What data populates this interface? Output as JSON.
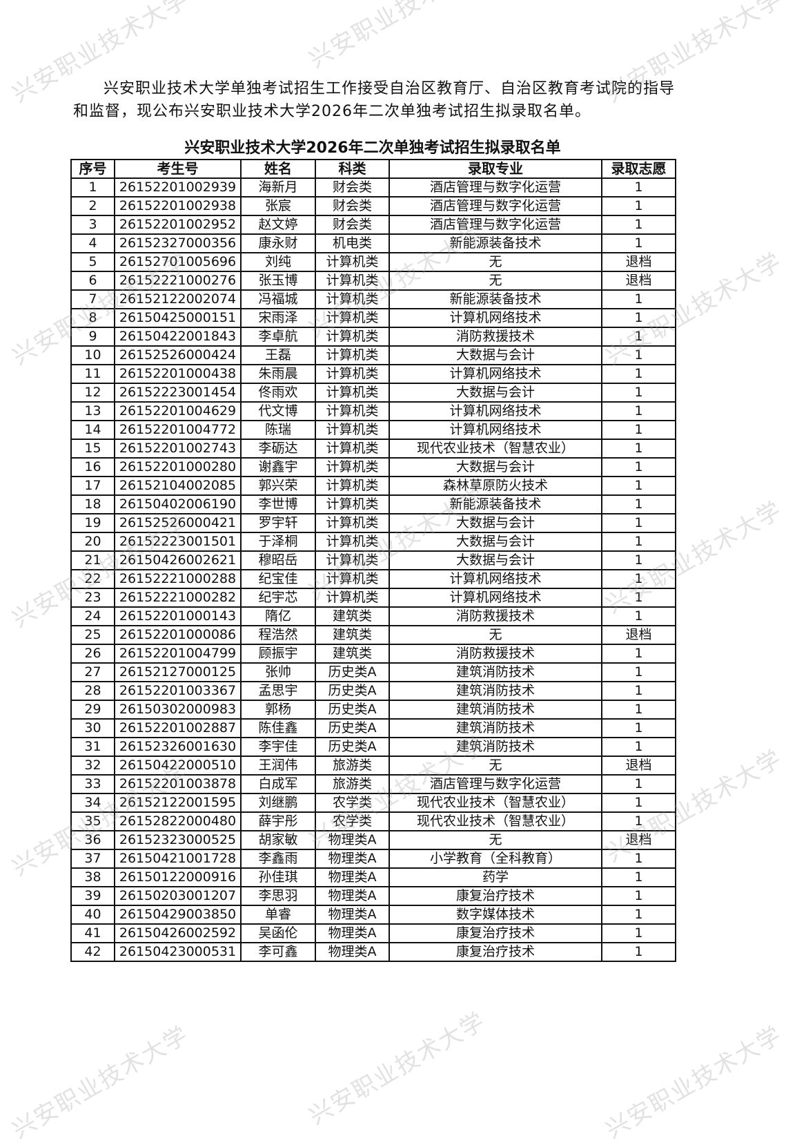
{
  "watermark": "兴安职业技术大学",
  "intro": "兴安职业技术大学单独考试招生工作接受自治区教育厅、自治区教育考试院的指导和监督，现公布兴安职业技术大学2026年二次单独考试招生拟录取名单。",
  "title": "兴安职业技术大学2026年二次单独考试招生拟录取名单",
  "table": {
    "headers": [
      "序号",
      "考生号",
      "姓名",
      "科类",
      "录取专业",
      "录取志愿"
    ],
    "rows": [
      [
        "1",
        "26152201002939",
        "海新月",
        "财会类",
        "酒店管理与数字化运营",
        "1"
      ],
      [
        "2",
        "26152201002938",
        "张宸",
        "财会类",
        "酒店管理与数字化运营",
        "1"
      ],
      [
        "3",
        "26152201002952",
        "赵文婷",
        "财会类",
        "酒店管理与数字化运营",
        "1"
      ],
      [
        "4",
        "26152327000356",
        "康永财",
        "机电类",
        "新能源装备技术",
        "1"
      ],
      [
        "5",
        "26152701005696",
        "刘纯",
        "计算机类",
        "无",
        "退档"
      ],
      [
        "6",
        "26152221000276",
        "张玉博",
        "计算机类",
        "无",
        "退档"
      ],
      [
        "7",
        "26152122002074",
        "冯福城",
        "计算机类",
        "新能源装备技术",
        "1"
      ],
      [
        "8",
        "26150425000151",
        "宋雨泽",
        "计算机类",
        "计算机网络技术",
        "1"
      ],
      [
        "9",
        "26150422001843",
        "李卓航",
        "计算机类",
        "消防救援技术",
        "1"
      ],
      [
        "10",
        "26152526000424",
        "王磊",
        "计算机类",
        "大数据与会计",
        "1"
      ],
      [
        "11",
        "26152201000438",
        "朱雨晨",
        "计算机类",
        "计算机网络技术",
        "1"
      ],
      [
        "12",
        "26152223001454",
        "佟雨欢",
        "计算机类",
        "大数据与会计",
        "1"
      ],
      [
        "13",
        "26152201004629",
        "代文博",
        "计算机类",
        "计算机网络技术",
        "1"
      ],
      [
        "14",
        "26152201004772",
        "陈瑞",
        "计算机类",
        "计算机网络技术",
        "1"
      ],
      [
        "15",
        "26152201002743",
        "李砺达",
        "计算机类",
        "现代农业技术（智慧农业）",
        "1"
      ],
      [
        "16",
        "26152201000280",
        "谢鑫宇",
        "计算机类",
        "大数据与会计",
        "1"
      ],
      [
        "17",
        "26152104002085",
        "郭兴荣",
        "计算机类",
        "森林草原防火技术",
        "1"
      ],
      [
        "18",
        "26150402006190",
        "李世博",
        "计算机类",
        "新能源装备技术",
        "1"
      ],
      [
        "19",
        "26152526000421",
        "罗宇轩",
        "计算机类",
        "大数据与会计",
        "1"
      ],
      [
        "20",
        "26152223001501",
        "于泽桐",
        "计算机类",
        "大数据与会计",
        "1"
      ],
      [
        "21",
        "26150426002621",
        "穆昭岳",
        "计算机类",
        "大数据与会计",
        "1"
      ],
      [
        "22",
        "26152221000288",
        "纪宝佳",
        "计算机类",
        "计算机网络技术",
        "1"
      ],
      [
        "23",
        "26152221000282",
        "纪宇芯",
        "计算机类",
        "计算机网络技术",
        "1"
      ],
      [
        "24",
        "26152201000143",
        "隋亿",
        "建筑类",
        "消防救援技术",
        "1"
      ],
      [
        "25",
        "26152201000086",
        "程浩然",
        "建筑类",
        "无",
        "退档"
      ],
      [
        "26",
        "26152201004799",
        "顾振宇",
        "建筑类",
        "消防救援技术",
        "1"
      ],
      [
        "27",
        "26152127000125",
        "张帅",
        "历史类A",
        "建筑消防技术",
        "1"
      ],
      [
        "28",
        "26152201003367",
        "孟思宇",
        "历史类A",
        "建筑消防技术",
        "1"
      ],
      [
        "29",
        "26150302000983",
        "郭杨",
        "历史类A",
        "建筑消防技术",
        "1"
      ],
      [
        "30",
        "26152201002887",
        "陈佳鑫",
        "历史类A",
        "建筑消防技术",
        "1"
      ],
      [
        "31",
        "26152326001630",
        "李宇佳",
        "历史类A",
        "建筑消防技术",
        "1"
      ],
      [
        "32",
        "26150422000510",
        "王润伟",
        "旅游类",
        "无",
        "退档"
      ],
      [
        "33",
        "26152201003878",
        "白成军",
        "旅游类",
        "酒店管理与数字化运营",
        "1"
      ],
      [
        "34",
        "26152122001595",
        "刘继鹏",
        "农学类",
        "现代农业技术（智慧农业）",
        "1"
      ],
      [
        "35",
        "26152822000480",
        "薛宇彤",
        "农学类",
        "现代农业技术（智慧农业）",
        "1"
      ],
      [
        "36",
        "26152323000525",
        "胡家敏",
        "物理类A",
        "无",
        "退档"
      ],
      [
        "37",
        "26150421001728",
        "李鑫雨",
        "物理类A",
        "小学教育（全科教育）",
        "1"
      ],
      [
        "38",
        "26150122000916",
        "孙佳琪",
        "物理类A",
        "药学",
        "1"
      ],
      [
        "39",
        "26150203001207",
        "李思羽",
        "物理类A",
        "康复治疗技术",
        "1"
      ],
      [
        "40",
        "26150429003850",
        "单睿",
        "物理类A",
        "数字媒体技术",
        "1"
      ],
      [
        "41",
        "26150426002592",
        "吴函伦",
        "物理类A",
        "康复治疗技术",
        "1"
      ],
      [
        "42",
        "26150423000531",
        "李可鑫",
        "物理类A",
        "康复治疗技术",
        "1"
      ]
    ]
  }
}
